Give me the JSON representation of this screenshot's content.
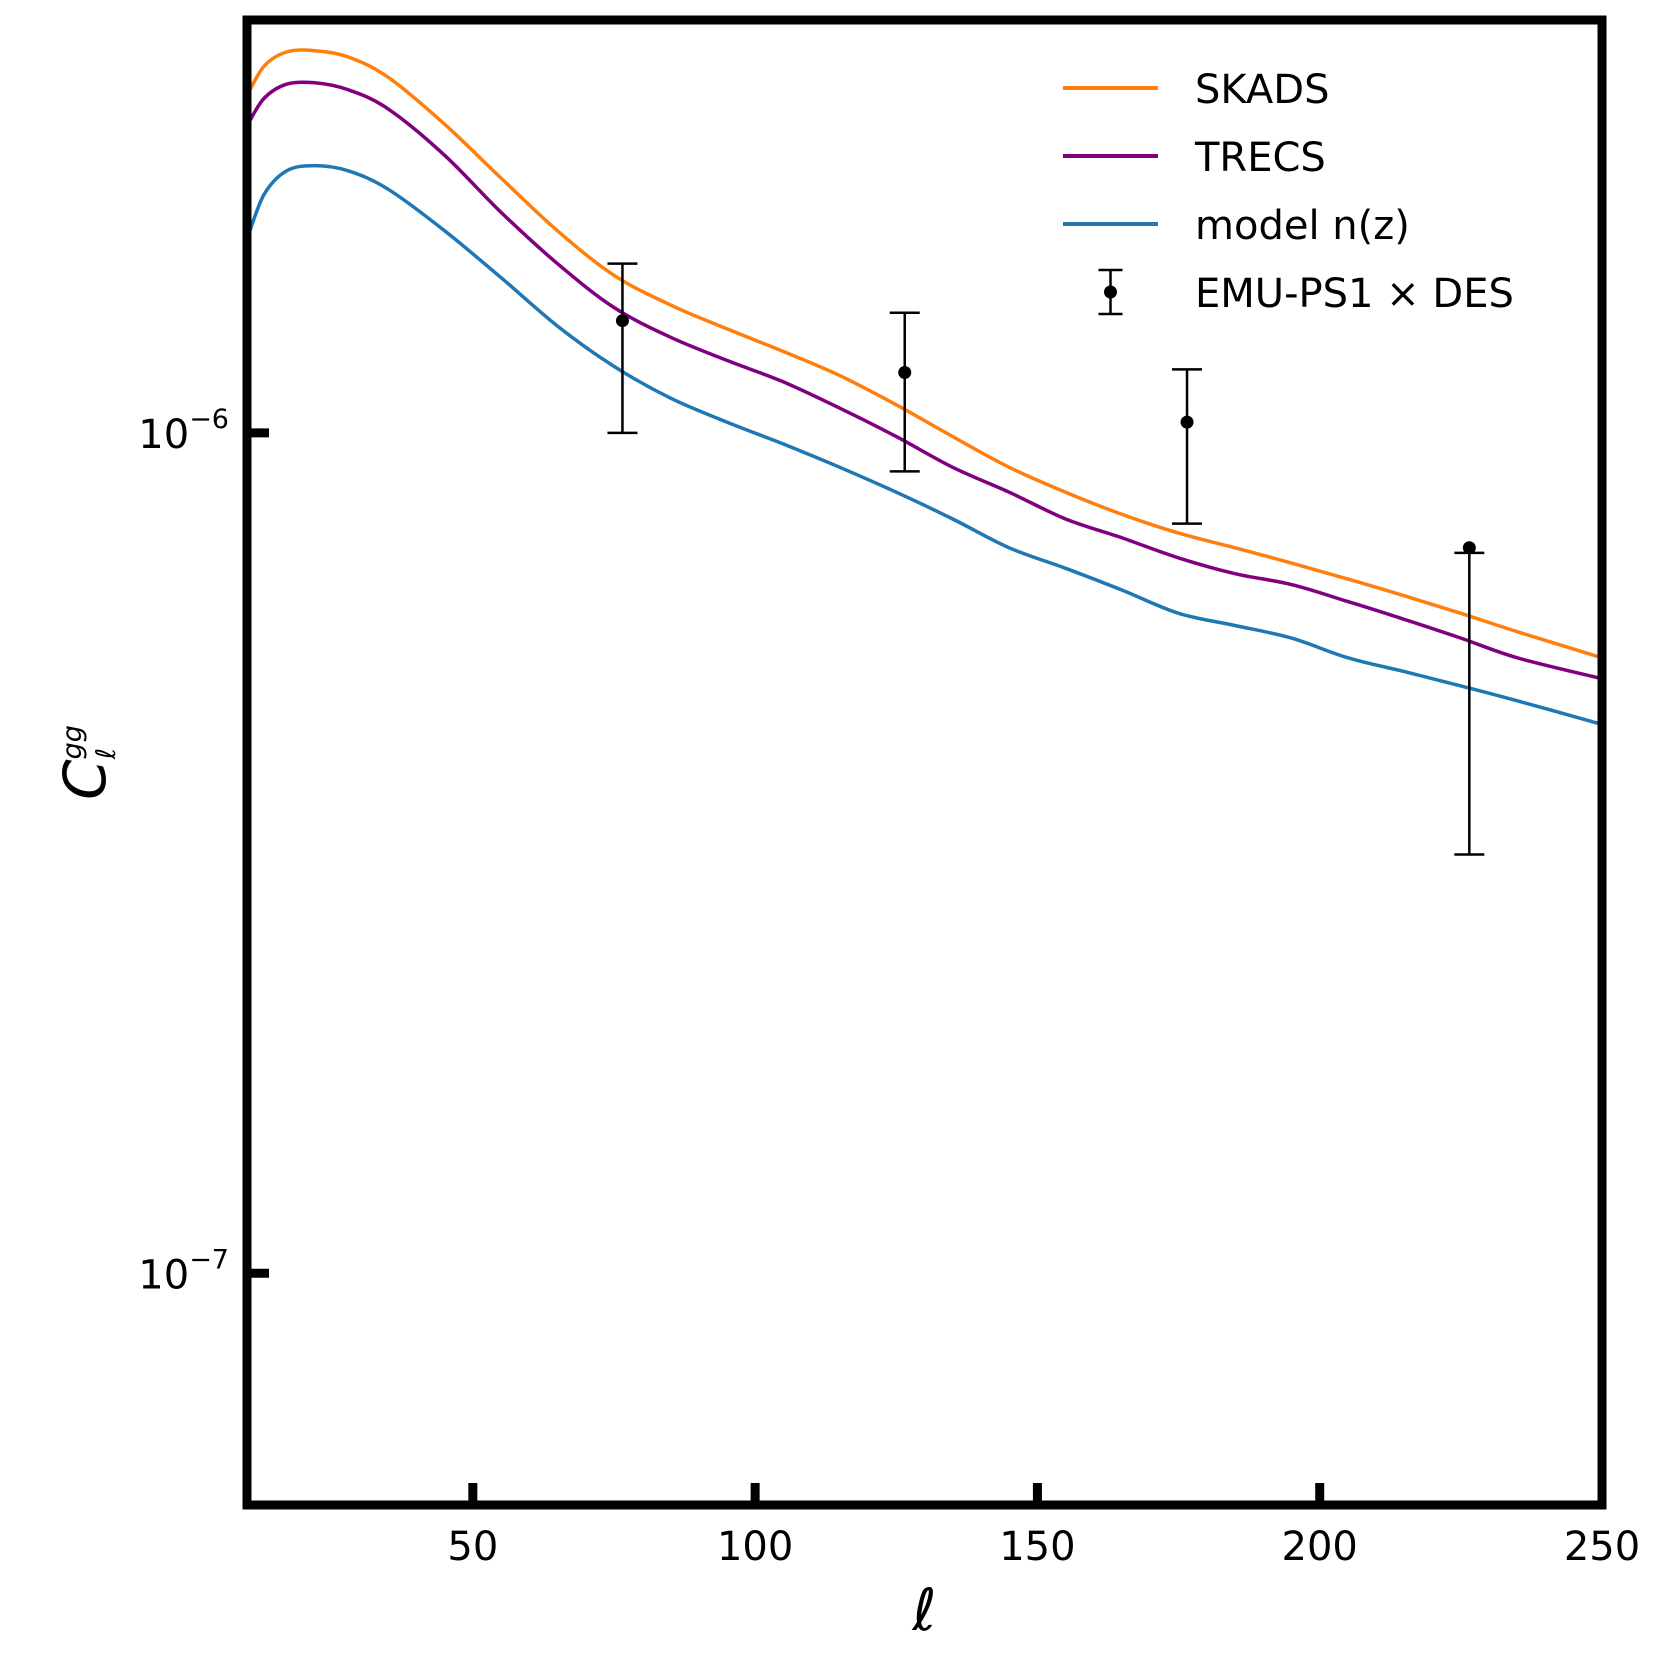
{
  "chart_data": {
    "type": "line",
    "xlabel": "ℓ",
    "ylabel": {
      "base": "C",
      "sub": "ℓ",
      "sup": "gg"
    },
    "xlim": [
      10,
      250
    ],
    "ylim": [
      5.3e-08,
      3.1e-06
    ],
    "yscale": "log",
    "grid": false,
    "legend_position": "top-right",
    "x_ticks": [
      {
        "value": 50,
        "label": "50"
      },
      {
        "value": 100,
        "label": "100"
      },
      {
        "value": 150,
        "label": "150"
      },
      {
        "value": 200,
        "label": "200"
      },
      {
        "value": 250,
        "label": "250"
      }
    ],
    "y_ticks": [
      {
        "value": 1e-06,
        "base": "10",
        "exp": "−6"
      },
      {
        "value": 1e-07,
        "base": "10",
        "exp": "−7"
      }
    ],
    "series": [
      {
        "name": "SKADS",
        "color": "#ff7f0e",
        "x": [
          10,
          13,
          17,
          22,
          28,
          35,
          45,
          55,
          65,
          75,
          85,
          95,
          105,
          115,
          125,
          135,
          145,
          155,
          165,
          175,
          185,
          195,
          205,
          215,
          225,
          235,
          250
        ],
        "y": [
          2.52e-06,
          2.73e-06,
          2.84e-06,
          2.85e-06,
          2.8e-06,
          2.65e-06,
          2.33e-06,
          2.01e-06,
          1.74e-06,
          1.54e-06,
          1.42e-06,
          1.33e-06,
          1.25e-06,
          1.17e-06,
          1.08e-06,
          9.9e-07,
          9.1e-07,
          8.5e-07,
          8e-07,
          7.6e-07,
          7.3e-07,
          7e-07,
          6.7e-07,
          6.4e-07,
          6.1e-07,
          5.8e-07,
          5.4e-07
        ]
      },
      {
        "name": "TRECS",
        "color": "#800080",
        "x": [
          10,
          13,
          17,
          22,
          28,
          35,
          45,
          55,
          65,
          75,
          85,
          95,
          105,
          115,
          125,
          135,
          145,
          155,
          165,
          175,
          185,
          195,
          205,
          215,
          225,
          235,
          250
        ],
        "y": [
          2.32e-06,
          2.5e-06,
          2.6e-06,
          2.61e-06,
          2.56e-06,
          2.43e-06,
          2.14e-06,
          1.83e-06,
          1.59e-06,
          1.41e-06,
          1.3e-06,
          1.22e-06,
          1.15e-06,
          1.07e-06,
          9.9e-07,
          9.1e-07,
          8.5e-07,
          7.9e-07,
          7.5e-07,
          7.1e-07,
          6.8e-07,
          6.6e-07,
          6.3e-07,
          6e-07,
          5.7e-07,
          5.4e-07,
          5.1e-07
        ]
      },
      {
        "name": "model n(z)",
        "color": "#1f77b4",
        "x": [
          10,
          13,
          17,
          22,
          28,
          35,
          45,
          55,
          65,
          75,
          85,
          95,
          105,
          115,
          125,
          135,
          145,
          155,
          165,
          175,
          185,
          195,
          205,
          215,
          225,
          235,
          250
        ],
        "y": [
          1.7e-06,
          1.92e-06,
          2.05e-06,
          2.08e-06,
          2.05e-06,
          1.95e-06,
          1.74e-06,
          1.53e-06,
          1.34e-06,
          1.2e-06,
          1.1e-06,
          1.03e-06,
          9.7e-07,
          9.1e-07,
          8.5e-07,
          7.9e-07,
          7.3e-07,
          6.9e-07,
          6.5e-07,
          6.1e-07,
          5.9e-07,
          5.7e-07,
          5.4e-07,
          5.2e-07,
          5e-07,
          4.8e-07,
          4.5e-07
        ]
      }
    ],
    "errorbars": {
      "name": "EMU-PS1 × DES",
      "color": "#000000",
      "x": [
        76.5,
        126.5,
        176.5,
        226.5
      ],
      "y": [
        1.36e-06,
        1.18e-06,
        1.03e-06,
        7.3e-07
      ],
      "yerr_low": [
        1e-06,
        9e-07,
        7.8e-07,
        3.15e-07
      ],
      "yerr_high": [
        1.59e-06,
        1.39e-06,
        1.19e-06,
        7.2e-07
      ]
    }
  }
}
